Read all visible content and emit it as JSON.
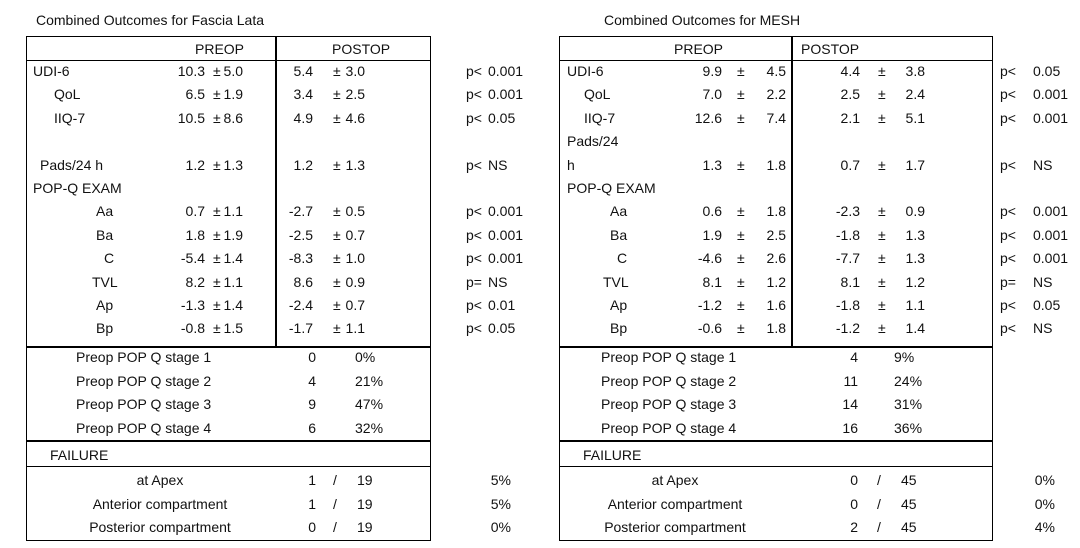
{
  "tables": [
    {
      "title": "Combined Outcomes for Fascia Lata",
      "header": {
        "preop": "PREOP",
        "postop": "POSTOP"
      },
      "rows": [
        {
          "label": "UDI-6",
          "pre_m": "10.3",
          "pre_pm": "±",
          "pre_sd": "5.0",
          "post_m": "5.4",
          "post_pm": "±",
          "post_sd": "3.0",
          "p_op": "p<",
          "p_val": "0.001"
        },
        {
          "label": "QoL",
          "pre_m": "6.5",
          "pre_pm": "±",
          "pre_sd": "1.9",
          "post_m": "3.4",
          "post_pm": "±",
          "post_sd": "2.5",
          "p_op": "p<",
          "p_val": "0.001"
        },
        {
          "label": "IIQ-7",
          "pre_m": "10.5",
          "pre_pm": "±",
          "pre_sd": "8.6",
          "post_m": "4.9",
          "post_pm": "±",
          "post_sd": "4.6",
          "p_op": "p<",
          "p_val": "0.05"
        },
        {
          "label": "",
          "pre_m": "",
          "pre_pm": "",
          "pre_sd": "",
          "post_m": "",
          "post_pm": "",
          "post_sd": "",
          "p_op": "",
          "p_val": ""
        },
        {
          "label": "Pads/24 h",
          "pre_m": "1.2",
          "pre_pm": "±",
          "pre_sd": "1.3",
          "post_m": "1.2",
          "post_pm": "±",
          "post_sd": "1.3",
          "p_op": "p<",
          "p_val": "NS"
        },
        {
          "label": "POP-Q  EXAM",
          "pre_m": "",
          "pre_pm": "",
          "pre_sd": "",
          "post_m": "",
          "post_pm": "",
          "post_sd": "",
          "p_op": "",
          "p_val": ""
        },
        {
          "label": "Aa",
          "pre_m": "0.7",
          "pre_pm": "±",
          "pre_sd": "1.1",
          "post_m": "-2.7",
          "post_pm": "±",
          "post_sd": "0.5",
          "p_op": "p<",
          "p_val": "0.001"
        },
        {
          "label": "Ba",
          "pre_m": "1.8",
          "pre_pm": "±",
          "pre_sd": "1.9",
          "post_m": "-2.5",
          "post_pm": "±",
          "post_sd": "0.7",
          "p_op": "p<",
          "p_val": "0.001"
        },
        {
          "label": "C",
          "pre_m": "-5.4",
          "pre_pm": "±",
          "pre_sd": "1.4",
          "post_m": "-8.3",
          "post_pm": "±",
          "post_sd": "1.0",
          "p_op": "p<",
          "p_val": "0.001"
        },
        {
          "label": "TVL",
          "pre_m": "8.2",
          "pre_pm": "±",
          "pre_sd": "1.1",
          "post_m": "8.6",
          "post_pm": "±",
          "post_sd": "0.9",
          "p_op": "p=",
          "p_val": "NS"
        },
        {
          "label": "Ap",
          "pre_m": "-1.3",
          "pre_pm": "±",
          "pre_sd": "1.4",
          "post_m": "-2.4",
          "post_pm": "±",
          "post_sd": "0.7",
          "p_op": "p<",
          "p_val": "0.01"
        },
        {
          "label": "Bp",
          "pre_m": "-0.8",
          "pre_pm": "±",
          "pre_sd": "1.5",
          "post_m": "-1.7",
          "post_pm": "±",
          "post_sd": "1.1",
          "p_op": "p<",
          "p_val": "0.05"
        }
      ],
      "stages": [
        {
          "label": "Preop POP Q stage 1",
          "n": "0",
          "pct": "0%"
        },
        {
          "label": "Preop POP Q stage 2",
          "n": "4",
          "pct": "21%"
        },
        {
          "label": "Preop POP Q stage 3",
          "n": "9",
          "pct": "47%"
        },
        {
          "label": "Preop POP Q stage 4",
          "n": "6",
          "pct": "32%"
        }
      ],
      "failure_title": "FAILURE",
      "failures": [
        {
          "label": "at Apex",
          "n": "1",
          "slash": "/",
          "total": "19",
          "pct": "5%"
        },
        {
          "label": "Anterior compartment",
          "n": "1",
          "slash": "/",
          "total": "19",
          "pct": "5%"
        },
        {
          "label": "Posterior compartment",
          "n": "0",
          "slash": "/",
          "total": "19",
          "pct": "0%"
        }
      ]
    },
    {
      "title": "Combined Outcomes for MESH",
      "header": {
        "preop": "PREOP",
        "postop": "POSTOP"
      },
      "rows": [
        {
          "label": "UDI-6",
          "pre_m": "9.9",
          "pre_pm": "±",
          "pre_sd": "4.5",
          "post_m": "4.4",
          "post_pm": "±",
          "post_sd": "3.8",
          "p_op": "p<",
          "p_val": "0.05"
        },
        {
          "label": "QoL",
          "pre_m": "7.0",
          "pre_pm": "±",
          "pre_sd": "2.2",
          "post_m": "2.5",
          "post_pm": "±",
          "post_sd": "2.4",
          "p_op": "p<",
          "p_val": "0.001"
        },
        {
          "label": "IIQ-7",
          "pre_m": "12.6",
          "pre_pm": "±",
          "pre_sd": "7.4",
          "post_m": "2.1",
          "post_pm": "±",
          "post_sd": "5.1",
          "p_op": "p<",
          "p_val": "0.001"
        },
        {
          "label": "Pads/24",
          "pre_m": "",
          "pre_pm": "",
          "pre_sd": "",
          "post_m": "",
          "post_pm": "",
          "post_sd": "",
          "p_op": "",
          "p_val": ""
        },
        {
          "label": "h",
          "pre_m": "1.3",
          "pre_pm": "±",
          "pre_sd": "1.8",
          "post_m": "0.7",
          "post_pm": "±",
          "post_sd": "1.7",
          "p_op": "p<",
          "p_val": "NS"
        },
        {
          "label": "POP-Q  EXAM",
          "pre_m": "",
          "pre_pm": "",
          "pre_sd": "",
          "post_m": "",
          "post_pm": "",
          "post_sd": "",
          "p_op": "",
          "p_val": ""
        },
        {
          "label": "Aa",
          "pre_m": "0.6",
          "pre_pm": "±",
          "pre_sd": "1.8",
          "post_m": "-2.3",
          "post_pm": "±",
          "post_sd": "0.9",
          "p_op": "p<",
          "p_val": "0.001"
        },
        {
          "label": "Ba",
          "pre_m": "1.9",
          "pre_pm": "±",
          "pre_sd": "2.5",
          "post_m": "-1.8",
          "post_pm": "±",
          "post_sd": "1.3",
          "p_op": "p<",
          "p_val": "0.001"
        },
        {
          "label": "C",
          "pre_m": "-4.6",
          "pre_pm": "±",
          "pre_sd": "2.6",
          "post_m": "-7.7",
          "post_pm": "±",
          "post_sd": "1.3",
          "p_op": "p<",
          "p_val": "0.001"
        },
        {
          "label": "TVL",
          "pre_m": "8.1",
          "pre_pm": "±",
          "pre_sd": "1.2",
          "post_m": "8.1",
          "post_pm": "±",
          "post_sd": "1.2",
          "p_op": "p=",
          "p_val": "NS"
        },
        {
          "label": "Ap",
          "pre_m": "-1.2",
          "pre_pm": "±",
          "pre_sd": "1.6",
          "post_m": "-1.8",
          "post_pm": "±",
          "post_sd": "1.1",
          "p_op": "p<",
          "p_val": "0.05"
        },
        {
          "label": "Bp",
          "pre_m": "-0.6",
          "pre_pm": "±",
          "pre_sd": "1.8",
          "post_m": "-1.2",
          "post_pm": "±",
          "post_sd": "1.4",
          "p_op": "p<",
          "p_val": "NS"
        }
      ],
      "stages": [
        {
          "label": "Preop POP Q stage 1",
          "n": "4",
          "pct": "9%"
        },
        {
          "label": "Preop POP Q stage 2",
          "n": "11",
          "pct": "24%"
        },
        {
          "label": "Preop POP Q stage 3",
          "n": "14",
          "pct": "31%"
        },
        {
          "label": "Preop POP Q stage 4",
          "n": "16",
          "pct": "36%"
        }
      ],
      "failure_title": "FAILURE",
      "failures": [
        {
          "label": "at Apex",
          "n": "0",
          "slash": "/",
          "total": "45",
          "pct": "0%"
        },
        {
          "label": "Anterior compartment",
          "n": "0",
          "slash": "/",
          "total": "45",
          "pct": "0%"
        },
        {
          "label": "Posterior compartment",
          "n": "2",
          "slash": "/",
          "total": "45",
          "pct": "4%"
        }
      ]
    }
  ]
}
